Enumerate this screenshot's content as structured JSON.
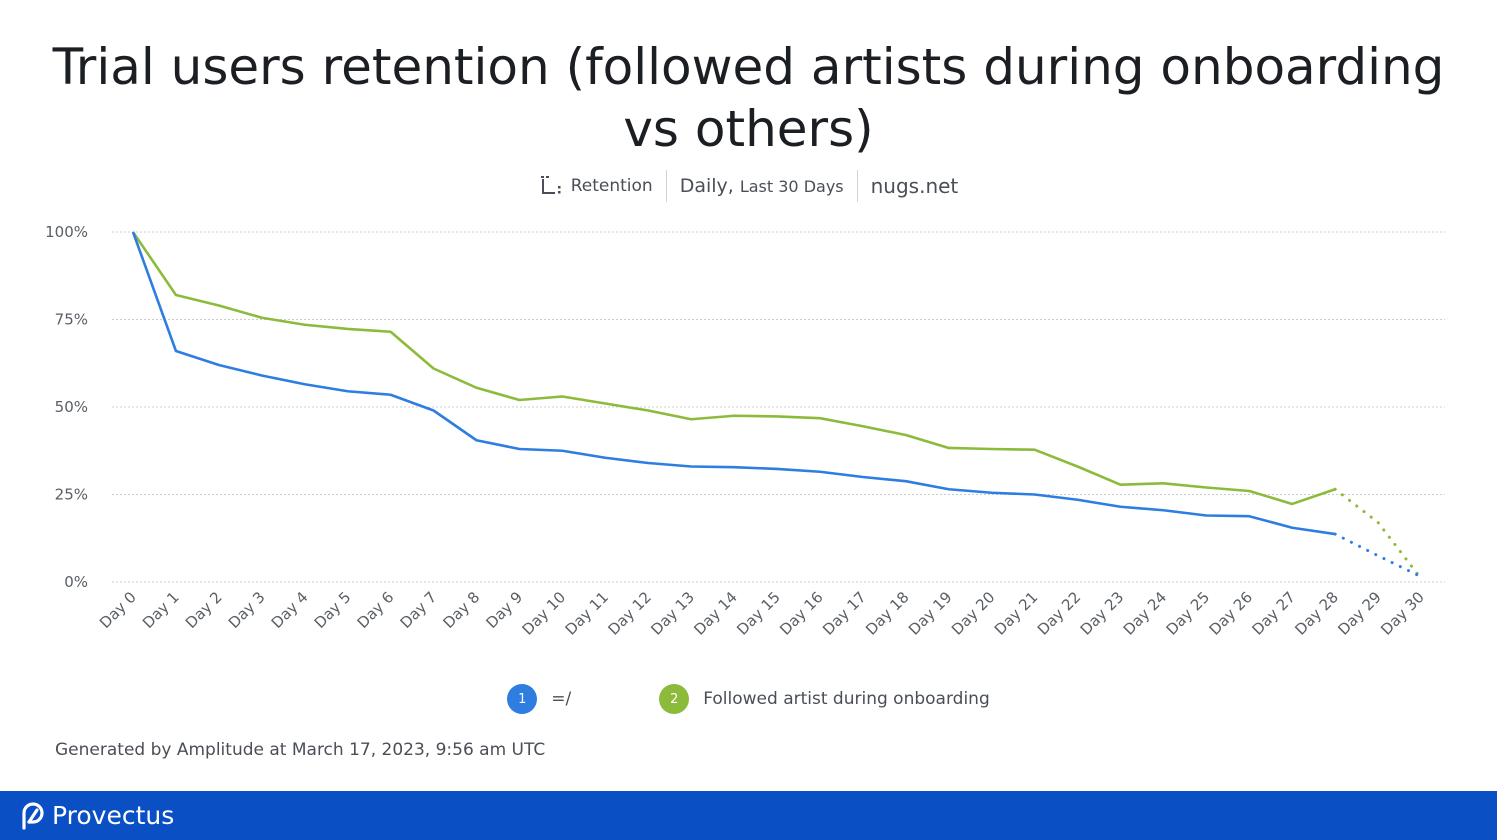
{
  "title": "Trial users retention (followed artists during onboarding vs others)",
  "subtitle": {
    "metric": "Retention",
    "interval": "Daily,",
    "range": "Last 30 Days",
    "project": "nugs.net"
  },
  "colors": {
    "series_1": "#2e7de1",
    "series_2": "#8cbb3c",
    "grid": "#c9ccd1",
    "brand_bar": "#0a4fc4"
  },
  "chart_data": {
    "type": "line",
    "x": [
      "Day 0",
      "Day 1",
      "Day 2",
      "Day 3",
      "Day 4",
      "Day 5",
      "Day 6",
      "Day 7",
      "Day 8",
      "Day 9",
      "Day 10",
      "Day 11",
      "Day 12",
      "Day 13",
      "Day 14",
      "Day 15",
      "Day 16",
      "Day 17",
      "Day 18",
      "Day 19",
      "Day 20",
      "Day 21",
      "Day 22",
      "Day 23",
      "Day 24",
      "Day 25",
      "Day 26",
      "Day 27",
      "Day 28",
      "Day 29",
      "Day 30"
    ],
    "y_ticks": [
      "0%",
      "25%",
      "50%",
      "75%",
      "100%"
    ],
    "ylim": [
      0,
      100
    ],
    "grid": true,
    "series": [
      {
        "legend_index": "1",
        "name": "=/",
        "values": [
          100,
          66,
          62,
          59,
          56.5,
          54.5,
          53.5,
          49,
          40.5,
          38,
          37.5,
          35.5,
          34,
          33,
          32.8,
          32.3,
          31.5,
          30,
          28.8,
          26.5,
          25.5,
          25,
          23.5,
          21.5,
          20.5,
          19,
          18.8,
          15.5,
          13.7,
          7.5,
          1.5
        ],
        "incomplete_from_index": 28
      },
      {
        "legend_index": "2",
        "name": "Followed artist during onboarding",
        "values": [
          100,
          82,
          79,
          75.5,
          73.5,
          72.3,
          71.5,
          61,
          55.5,
          52,
          53,
          51,
          49,
          46.5,
          47.5,
          47.3,
          46.8,
          44.5,
          42,
          38.3,
          38,
          37.8,
          33,
          27.8,
          28.2,
          27,
          26,
          22.3,
          26.5,
          17,
          1
        ],
        "incomplete_from_index": 28
      }
    ]
  },
  "footer": "Generated by Amplitude at March 17, 2023, 9:56 am UTC",
  "brand": {
    "name": "Provectus",
    "logo_icon": "provectus-logo-icon"
  }
}
